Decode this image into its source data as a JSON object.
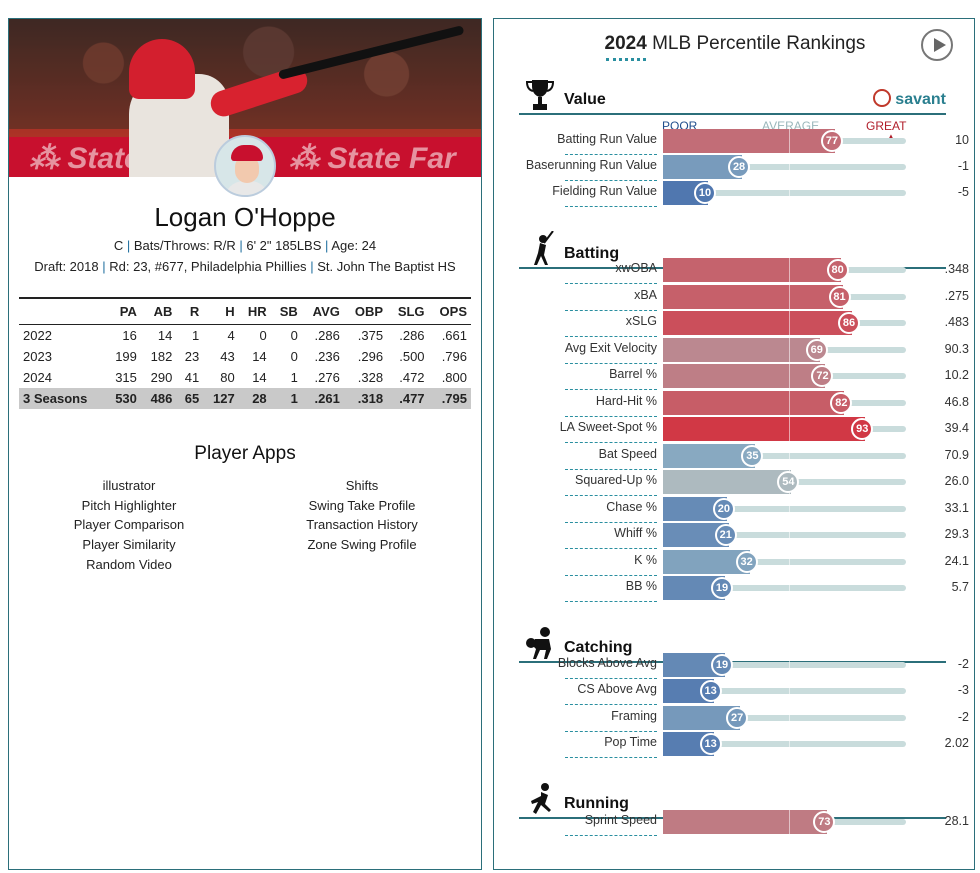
{
  "player": {
    "name": "Logan O'Hoppe",
    "position": "C",
    "bats_throws": "Bats/Throws: R/R",
    "height_weight": "6' 2\" 185LBS",
    "age": "Age: 24",
    "draft": "Draft: 2018",
    "round": "Rd: 23, #677, Philadelphia Phillies",
    "school": "St. John The Baptist HS"
  },
  "stats_table": {
    "headers": [
      "",
      "PA",
      "AB",
      "R",
      "H",
      "HR",
      "SB",
      "AVG",
      "OBP",
      "SLG",
      "OPS"
    ],
    "rows": [
      [
        "2022",
        "16",
        "14",
        "1",
        "4",
        "0",
        "0",
        ".286",
        ".375",
        ".286",
        ".661"
      ],
      [
        "2023",
        "199",
        "182",
        "23",
        "43",
        "14",
        "0",
        ".236",
        ".296",
        ".500",
        ".796"
      ],
      [
        "2024",
        "315",
        "290",
        "41",
        "80",
        "14",
        "1",
        ".276",
        ".328",
        ".472",
        ".800"
      ],
      [
        "3 Seasons",
        "530",
        "486",
        "65",
        "127",
        "28",
        "1",
        ".261",
        ".318",
        ".477",
        ".795"
      ]
    ]
  },
  "apps": {
    "title": "Player Apps",
    "left": [
      "illustrator",
      "Pitch Highlighter",
      "Player Comparison",
      "Player Similarity",
      "Random Video"
    ],
    "right": [
      "Shifts",
      "Swing Take Profile",
      "Transaction History",
      "Zone Swing Profile"
    ]
  },
  "rankings": {
    "year": "2024",
    "title": "MLB Percentile Rankings",
    "brand": "savant",
    "scale": {
      "poor": "POOR",
      "average": "AVERAGE",
      "great": "GREAT"
    },
    "colors": {
      "poor": "#3a63a8",
      "average": "#a9c7cb",
      "great": "#d8212f"
    },
    "sections": [
      {
        "name": "Value",
        "icon": "trophy-icon",
        "metrics": [
          {
            "label": "Batting Run Value",
            "pct": 77,
            "value": "10"
          },
          {
            "label": "Baserunning Run Value",
            "pct": 28,
            "value": "-1"
          },
          {
            "label": "Fielding Run Value",
            "pct": 10,
            "value": "-5"
          }
        ]
      },
      {
        "name": "Batting",
        "icon": "batter-icon",
        "metrics": [
          {
            "label": "xwOBA",
            "pct": 80,
            "value": ".348"
          },
          {
            "label": "xBA",
            "pct": 81,
            "value": ".275"
          },
          {
            "label": "xSLG",
            "pct": 86,
            "value": ".483"
          },
          {
            "label": "Avg Exit Velocity",
            "pct": 69,
            "value": "90.3"
          },
          {
            "label": "Barrel %",
            "pct": 72,
            "value": "10.2"
          },
          {
            "label": "Hard-Hit %",
            "pct": 82,
            "value": "46.8"
          },
          {
            "label": "LA Sweet-Spot %",
            "pct": 93,
            "value": "39.4"
          },
          {
            "label": "Bat Speed",
            "pct": 35,
            "value": "70.9"
          },
          {
            "label": "Squared-Up %",
            "pct": 54,
            "value": "26.0"
          },
          {
            "label": "Chase %",
            "pct": 20,
            "value": "33.1"
          },
          {
            "label": "Whiff %",
            "pct": 21,
            "value": "29.3"
          },
          {
            "label": "K %",
            "pct": 32,
            "value": "24.1"
          },
          {
            "label": "BB %",
            "pct": 19,
            "value": "5.7"
          }
        ]
      },
      {
        "name": "Catching",
        "icon": "catcher-icon",
        "metrics": [
          {
            "label": "Blocks Above Avg",
            "pct": 19,
            "value": "-2"
          },
          {
            "label": "CS Above Avg",
            "pct": 13,
            "value": "-3"
          },
          {
            "label": "Framing",
            "pct": 27,
            "value": "-2"
          },
          {
            "label": "Pop Time",
            "pct": 13,
            "value": "2.02"
          }
        ]
      },
      {
        "name": "Running",
        "icon": "runner-icon",
        "metrics": [
          {
            "label": "Sprint Speed",
            "pct": 73,
            "value": "28.1"
          }
        ]
      }
    ]
  }
}
